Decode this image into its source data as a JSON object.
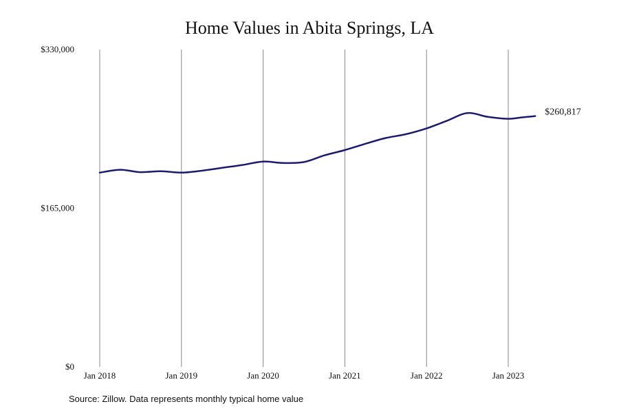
{
  "chart_data": {
    "type": "line",
    "title": "Home Values in Abita Springs, LA",
    "xlabel": "",
    "ylabel": "",
    "ylim": [
      0,
      330000
    ],
    "y_ticks": [
      0,
      165000,
      330000
    ],
    "y_tick_labels": [
      "$0",
      "$165,000",
      "$330,000"
    ],
    "x_ticks": [
      2018,
      2019,
      2020,
      2021,
      2022,
      2023
    ],
    "x_tick_labels": [
      "Jan 2018",
      "Jan 2019",
      "Jan 2020",
      "Jan 2021",
      "Jan 2022",
      "Jan 2023"
    ],
    "grid": "vertical lines at x ticks",
    "series": [
      {
        "color": "#1b1b6e",
        "x": [
          2018.0,
          2018.25,
          2018.5,
          2018.75,
          2019.0,
          2019.25,
          2019.5,
          2019.75,
          2020.0,
          2020.25,
          2020.5,
          2020.75,
          2021.0,
          2021.25,
          2021.5,
          2021.75,
          2022.0,
          2022.25,
          2022.5,
          2022.75,
          2023.0,
          2023.17,
          2023.33
        ],
        "y": [
          202000,
          205000,
          202500,
          203500,
          202000,
          204000,
          207000,
          210000,
          213500,
          212000,
          213000,
          220000,
          225500,
          232000,
          238000,
          242000,
          248000,
          256000,
          264000,
          260000,
          258000,
          259500,
          260817
        ]
      }
    ],
    "end_label": "$260,817"
  },
  "source_note": "Source: Zillow. Data represents monthly typical home value"
}
